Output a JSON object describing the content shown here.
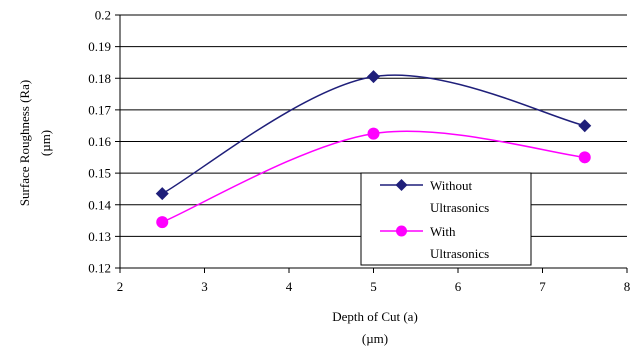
{
  "chart_data": {
    "type": "line",
    "title": "",
    "xlabel": [
      "Depth of Cut (a)",
      "(µm)"
    ],
    "ylabel": [
      "Surface Roughness (Ra)",
      "(µm)"
    ],
    "xlim": [
      2,
      8
    ],
    "ylim": [
      0.12,
      0.2
    ],
    "xticks": [
      "2",
      "3",
      "4",
      "5",
      "6",
      "7",
      "8"
    ],
    "yticks": [
      "0.12",
      "0.13",
      "0.14",
      "0.15",
      "0.16",
      "0.17",
      "0.18",
      "0.19",
      "0.2"
    ],
    "grid": "horizontal",
    "smooth": true,
    "legend_placement": "lower-right",
    "series": [
      {
        "name": [
          "Without",
          "Ultrasonics"
        ],
        "x": [
          2.5,
          5,
          7.5
        ],
        "y": [
          0.1435,
          0.1805,
          0.165
        ],
        "color": "#1f1f7a",
        "marker": "diamond"
      },
      {
        "name": [
          "With",
          "Ultrasonics"
        ],
        "x": [
          2.5,
          5,
          7.5
        ],
        "y": [
          0.1345,
          0.1625,
          0.155
        ],
        "color": "#ff00ff",
        "marker": "circle"
      }
    ]
  }
}
